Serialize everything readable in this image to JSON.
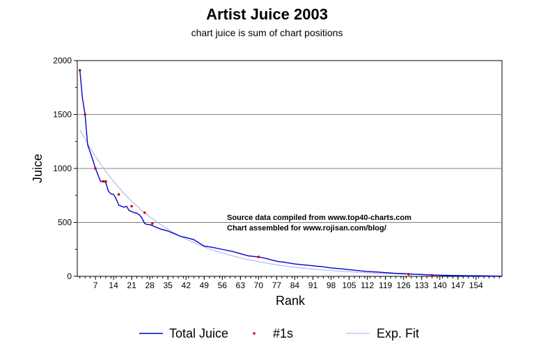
{
  "chart_data": {
    "type": "line",
    "title": "Artist Juice 2003",
    "subtitle": "chart juice is sum of chart positions",
    "xlabel": "Rank",
    "ylabel": "Juice",
    "xlim": [
      0,
      164
    ],
    "ylim": [
      0,
      2000
    ],
    "x_ticks": [
      7,
      14,
      21,
      28,
      35,
      42,
      49,
      56,
      63,
      70,
      77,
      84,
      91,
      98,
      105,
      112,
      119,
      126,
      133,
      140,
      147,
      154
    ],
    "y_ticks": [
      0,
      500,
      1000,
      1500,
      2000
    ],
    "grid": "horizontal",
    "legend_position": "bottom",
    "annotations": [
      "Source data compiled from www.top40-charts.com",
      "Chart assembled for www.rojisan.com/blog/"
    ],
    "series": [
      {
        "name": "Total Juice",
        "kind": "line",
        "color": "#0000cc",
        "x": [
          1,
          2,
          3,
          4,
          5,
          6,
          7,
          8,
          9,
          10,
          11,
          12,
          13,
          14,
          15,
          16,
          17,
          18,
          19,
          20,
          21,
          22,
          23,
          24,
          25,
          26,
          27,
          28,
          30,
          32,
          35,
          38,
          40,
          42,
          45,
          49,
          52,
          56,
          60,
          63,
          66,
          70,
          73,
          77,
          80,
          84,
          88,
          91,
          95,
          98,
          102,
          105,
          109,
          112,
          116,
          119,
          123,
          126,
          130,
          133,
          137,
          140,
          145,
          150,
          155,
          160,
          164
        ],
        "y": [
          1910,
          1650,
          1500,
          1220,
          1150,
          1080,
          1000,
          940,
          880,
          880,
          870,
          790,
          765,
          760,
          720,
          660,
          650,
          640,
          650,
          610,
          600,
          590,
          585,
          570,
          540,
          490,
          480,
          480,
          460,
          440,
          420,
          390,
          370,
          360,
          340,
          280,
          270,
          250,
          230,
          210,
          190,
          180,
          165,
          140,
          130,
          115,
          105,
          98,
          88,
          78,
          70,
          62,
          52,
          45,
          40,
          34,
          28,
          25,
          20,
          17,
          12,
          10,
          7,
          5,
          4,
          2,
          0
        ]
      },
      {
        "name": "#1s",
        "kind": "markers",
        "color": "#cc0000",
        "x": [
          1,
          3,
          7,
          10,
          11,
          16,
          21,
          26,
          29,
          70,
          128,
          137
        ],
        "y": [
          1910,
          1500,
          1000,
          880,
          880,
          760,
          650,
          590,
          490,
          180,
          20,
          10
        ]
      },
      {
        "name": "Exp. Fit",
        "kind": "line",
        "color": "#aaaaee"
      }
    ]
  }
}
